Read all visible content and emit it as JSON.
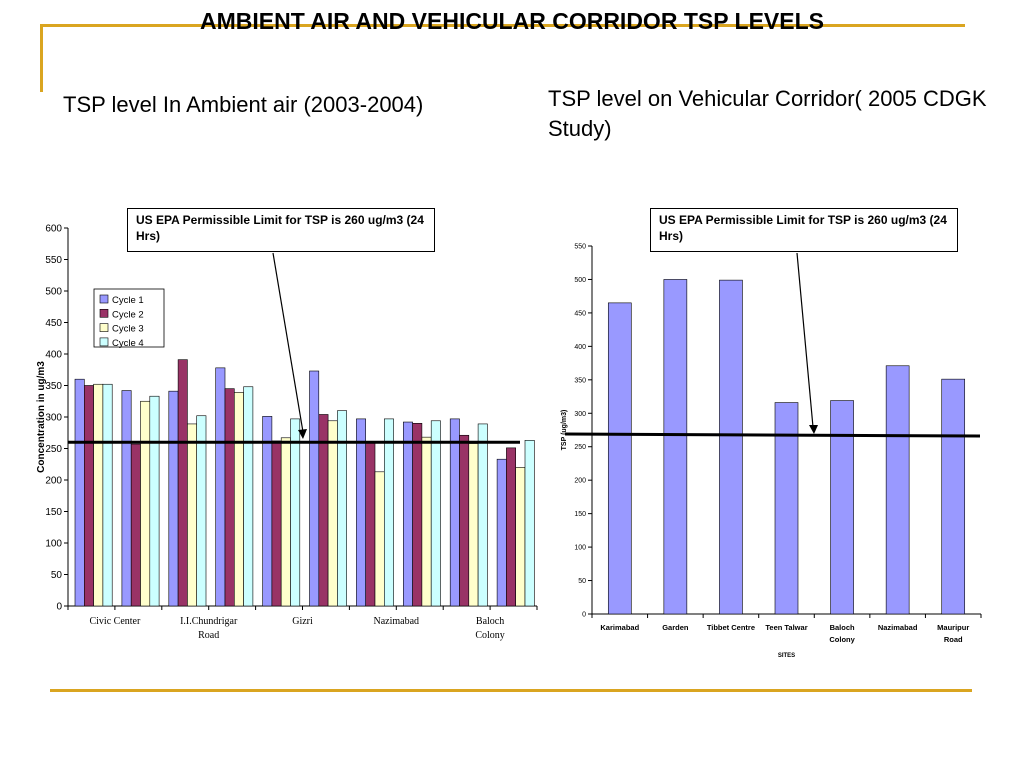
{
  "slide": {
    "title": "AMBIENT AIR AND VEHICULAR CORRIDOR TSP LEVELS",
    "subtitle_left": "TSP level In Ambient air (2003-2004)",
    "subtitle_right": "TSP level on Vehicular Corridor( 2005 CDGK Study)",
    "accent_color": "#DAA520"
  },
  "chart_data": [
    {
      "type": "bar",
      "title": "",
      "ylabel": "Concentration in ug/m3",
      "xlabel": "",
      "ylim": [
        0,
        600
      ],
      "yticks": [
        0,
        50,
        100,
        150,
        200,
        250,
        300,
        350,
        400,
        450,
        500,
        550,
        600
      ],
      "grid": false,
      "legend_position": "top-left",
      "x_tick_labels": [
        {
          "lines": [
            "Civic Center"
          ],
          "after_group": 0
        },
        {
          "lines": [
            "I.I.Chundrigar",
            "Road"
          ],
          "after_group": 2
        },
        {
          "lines": [
            "Gizri"
          ],
          "after_group": 4
        },
        {
          "lines": [
            "Nazimabad"
          ],
          "after_group": 6
        },
        {
          "lines": [
            "Baloch",
            "Colony"
          ],
          "after_group": 8
        }
      ],
      "series": [
        {
          "name": "Cycle 1",
          "color": "#9999FF",
          "values": [
            360,
            342,
            341,
            378,
            301,
            373,
            297,
            292,
            297,
            233
          ]
        },
        {
          "name": "Cycle 2",
          "color": "#993366",
          "values": [
            350,
            257,
            391,
            345,
            262,
            304,
            259,
            290,
            271,
            251
          ]
        },
        {
          "name": "Cycle 3",
          "color": "#FFFFCC",
          "values": [
            352,
            325,
            289,
            339,
            267,
            294,
            213,
            268,
            258,
            220
          ]
        },
        {
          "name": "Cycle 4",
          "color": "#CCFFFF",
          "values": [
            352,
            333,
            302,
            348,
            297,
            310,
            297,
            294,
            289,
            263
          ]
        }
      ],
      "reference_line": {
        "value": 260
      },
      "annotation": "US EPA Permissible Limit for TSP  is 260 ug/m3 (24 Hrs)"
    },
    {
      "type": "bar",
      "title": "",
      "ylabel": "TSP (ug/m3)",
      "xlabel": "SITES",
      "ylim": [
        0,
        550
      ],
      "yticks": [
        0,
        50,
        100,
        150,
        200,
        250,
        300,
        350,
        400,
        450,
        500,
        550
      ],
      "grid": false,
      "categories": [
        {
          "lines": [
            "Karimabad"
          ]
        },
        {
          "lines": [
            "Garden"
          ]
        },
        {
          "lines": [
            "Tibbet Centre"
          ]
        },
        {
          "lines": [
            "Teen Talwar"
          ]
        },
        {
          "lines": [
            "Baloch",
            "Colony"
          ]
        },
        {
          "lines": [
            "Nazimabad"
          ]
        },
        {
          "lines": [
            "Mauripur",
            "Road"
          ]
        }
      ],
      "series": [
        {
          "name": "",
          "color": "#9999FF",
          "values": [
            465,
            500,
            499,
            316,
            319,
            371,
            351
          ]
        }
      ],
      "reference_line": {
        "value_start": 269,
        "value_end": 266
      },
      "annotation": "US EPA Permissible Limit for TSP  is 260 ug/m3 (24 Hrs)"
    }
  ]
}
